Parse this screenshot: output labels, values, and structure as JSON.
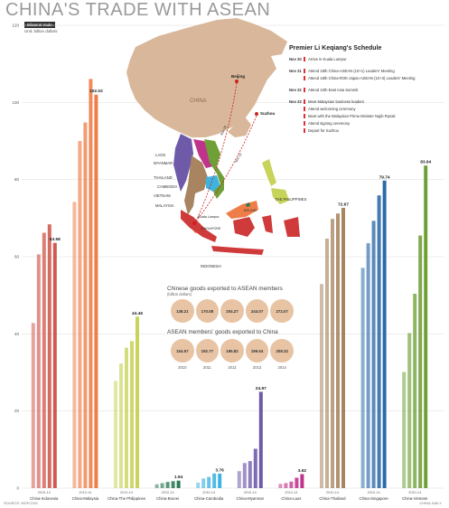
{
  "header": {
    "title": "CHINA'S TRADE WITH ASEAN",
    "badge": "Bilateral trade",
    "unit": "Unit: billion dollars"
  },
  "chart_data": {
    "type": "bar",
    "title": "CHINA'S TRADE WITH ASEAN",
    "ylabel": "Unit: billion dollars",
    "ylim": [
      0,
      120
    ],
    "yticks": [
      0,
      20,
      40,
      60,
      80,
      100,
      120
    ],
    "grid": true,
    "groups": [
      {
        "name": "China-Indonesia",
        "years": "2010-14",
        "color": "#cf5a4f",
        "values": [
          42.8,
          60.6,
          66.2,
          68.4,
          63.58
        ],
        "label": "63.58"
      },
      {
        "name": "China-Malaysia",
        "years": "2010-14",
        "color": "#ef7d48",
        "values": [
          74.2,
          90.0,
          94.8,
          106.1,
          102.02
        ],
        "label": "102.02"
      },
      {
        "name": "China-The Philippines",
        "years": "2010-14",
        "color": "#c8d35a",
        "values": [
          27.8,
          32.3,
          36.4,
          38.1,
          44.46
        ],
        "label": "44.46"
      },
      {
        "name": "China-Brunei",
        "years": "2010-14",
        "color": "#2f7a55",
        "values": [
          1.0,
          1.3,
          1.6,
          1.8,
          1.94
        ],
        "label": "1.94"
      },
      {
        "name": "China-Cambodia",
        "years": "2010-14",
        "color": "#3fb3e0",
        "values": [
          1.4,
          2.5,
          2.9,
          3.8,
          3.76
        ],
        "label": "3.76"
      },
      {
        "name": "China-Myanmar",
        "years": "2010-14",
        "color": "#6e5aa8",
        "values": [
          4.4,
          6.5,
          7.0,
          10.2,
          24.97
        ],
        "label": "24.97"
      },
      {
        "name": "China-Laos",
        "years": "2010-14",
        "color": "#c0338c",
        "values": [
          1.1,
          1.3,
          1.7,
          2.7,
          3.62
        ],
        "label": "3.62"
      },
      {
        "name": "China-Thailand",
        "years": "2010-14",
        "color": "#a88560",
        "values": [
          52.9,
          64.7,
          69.8,
          71.2,
          72.67
        ],
        "label": "72.67"
      },
      {
        "name": "China-Singapore",
        "years": "2010-14",
        "color": "#2b6aa8",
        "values": [
          57.1,
          63.5,
          69.3,
          75.9,
          79.74
        ],
        "label": "79.74"
      },
      {
        "name": "China-Vietnam",
        "years": "2010-14",
        "color": "#6fa037",
        "values": [
          30.1,
          40.2,
          50.4,
          65.5,
          83.64
        ],
        "label": "83.64"
      }
    ]
  },
  "map": {
    "labels": {
      "china": "CHINA",
      "beijing": "Beijing",
      "suzhou": "Suzhou",
      "laos": "LAOS",
      "myanmar": "MYANMAR",
      "thailand": "THAILAND",
      "cambodia": "CAMBODIA",
      "vietnam": "VIETNAM",
      "malaysia": "MALAYSIA",
      "kuala_lumpur": "Kuala Lumpur",
      "singapore": "SINGAPORE",
      "brunei": "BRUNEI",
      "philippines": "THE PHILIPPINES",
      "indonesia": "INDONESIA",
      "nov20": "Nov 20",
      "nov23": "Nov 23"
    }
  },
  "schedule": {
    "title": "Premier Li Keqiang's Schedule",
    "items": [
      {
        "date": "Nov 20",
        "text": "Arrive in Kuala Lumpur"
      },
      {
        "date": "Nov 21",
        "text": "Attend 18th China-ASEAN (10+1) Leaders' Meeting"
      },
      {
        "date": "",
        "text": "Attend 18th China-ROK-Japan ASEAN (10+3) Leaders' Meeting"
      },
      {
        "date": "Nov 22",
        "text": "Attend 10th East Asia Summit"
      },
      {
        "date": "Nov 23",
        "text": "Meet Malaysian business leaders"
      },
      {
        "date": "",
        "text": "Attend welcoming ceremony"
      },
      {
        "date": "",
        "text": "Meet with the Malaysian Prime Minister Najib Razak"
      },
      {
        "date": "",
        "text": "Attend signing ceremony"
      },
      {
        "date": "",
        "text": "Depart for Suzhou"
      }
    ]
  },
  "trade": {
    "export_title": "Chinese goods exported to ASEAN members",
    "export_sub": "(billion dollars)",
    "exports": [
      "138.21",
      "170.08",
      "204.27",
      "244.07",
      "272.07"
    ],
    "import_title": "ASEAN members' goods exported to China",
    "imports": [
      "154.57",
      "192.77",
      "195.82",
      "199.54",
      "208.32"
    ],
    "years": [
      "2010",
      "2011",
      "2012",
      "2013",
      "2014"
    ]
  },
  "footer": {
    "source": "SOURCE: MOFCOM",
    "credit": "CHINA DAILY"
  }
}
